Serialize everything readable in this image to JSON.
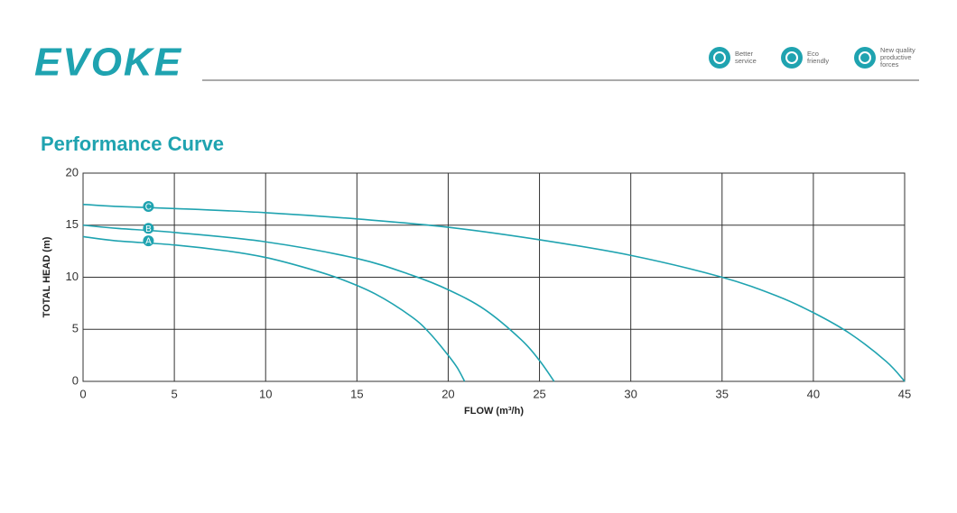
{
  "header": {
    "brand": "EVOKE",
    "features": [
      {
        "lines": [
          "Better",
          "service"
        ]
      },
      {
        "lines": [
          "Eco",
          "friendly"
        ]
      },
      {
        "lines": [
          "New quality",
          "productive",
          "forces"
        ]
      }
    ]
  },
  "section_title": "Performance Curve",
  "chart_data": {
    "type": "line",
    "xlabel": "FLOW (m³/h)",
    "ylabel": "TOTAL HEAD (m)",
    "xlim": [
      0,
      45
    ],
    "xticks": [
      0,
      5,
      10,
      15,
      20,
      25,
      30,
      35,
      40,
      45
    ],
    "ylim": [
      0,
      20
    ],
    "yticks": [
      0,
      5,
      10,
      15,
      20
    ],
    "grid": true,
    "color": "#1fa3b0",
    "series": [
      {
        "name": "A",
        "x": [
          0,
          1.8,
          5,
          8,
          10,
          12,
          14,
          16,
          18,
          19,
          20,
          20.5,
          20.9
        ],
        "values": [
          13.9,
          13.5,
          13.1,
          12.5,
          11.9,
          11.0,
          9.9,
          8.4,
          6.2,
          4.6,
          2.5,
          1.3,
          0
        ]
      },
      {
        "name": "B",
        "x": [
          0,
          1.8,
          5,
          10,
          15,
          18,
          20,
          22,
          24,
          25,
          25.8
        ],
        "values": [
          15,
          14.7,
          14.3,
          13.4,
          11.8,
          10.2,
          8.8,
          6.9,
          4.0,
          2.0,
          0
        ]
      },
      {
        "name": "C",
        "x": [
          0,
          1.8,
          5,
          10,
          15,
          20,
          25,
          30,
          35,
          38,
          40,
          42,
          44,
          45
        ],
        "values": [
          17,
          16.8,
          16.6,
          16.2,
          15.6,
          14.8,
          13.6,
          12.1,
          10,
          8.2,
          6.6,
          4.6,
          1.9,
          0
        ]
      }
    ]
  }
}
